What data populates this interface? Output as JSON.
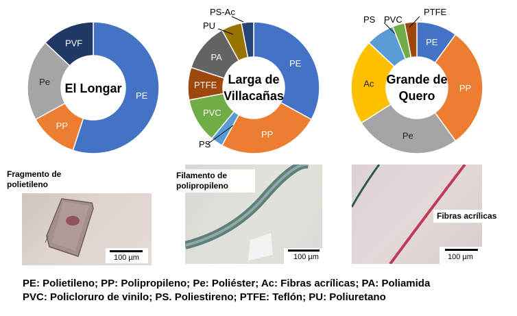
{
  "chart_data": [
    {
      "type": "pie",
      "title": "El Longar",
      "slices": [
        {
          "label": "PE",
          "value": 55,
          "color": "#4472C4"
        },
        {
          "label": "PP",
          "value": 12,
          "color": "#ED7D31"
        },
        {
          "label": "Pe",
          "value": 20,
          "color": "#A5A5A5"
        },
        {
          "label": "PVF",
          "value": 13,
          "color": "#203864"
        }
      ]
    },
    {
      "type": "pie",
      "title": "Larga de Villacañas",
      "slices": [
        {
          "label": "PE",
          "value": 33,
          "color": "#4472C4"
        },
        {
          "label": "PP",
          "value": 25,
          "color": "#ED7D31"
        },
        {
          "label": "PS",
          "value": 3,
          "color": "#5B9BD5"
        },
        {
          "label": "PVC",
          "value": 11,
          "color": "#70AD47"
        },
        {
          "label": "PTFE",
          "value": 8,
          "color": "#9E480E"
        },
        {
          "label": "PA",
          "value": 12,
          "color": "#636363"
        },
        {
          "label": "PU",
          "value": 5,
          "color": "#997300"
        },
        {
          "label": "PS-Ac",
          "value": 3,
          "color": "#264478"
        }
      ]
    },
    {
      "type": "pie",
      "title": "Grande de Quero",
      "slices": [
        {
          "label": "PE",
          "value": 10,
          "color": "#4472C4"
        },
        {
          "label": "PP",
          "value": 30,
          "color": "#ED7D31"
        },
        {
          "label": "Pe",
          "value": 26,
          "color": "#A5A5A5"
        },
        {
          "label": "Ac",
          "value": 21,
          "color": "#FFC000"
        },
        {
          "label": "PS",
          "value": 7,
          "color": "#5B9BD5"
        },
        {
          "label": "PVC",
          "value": 3,
          "color": "#70AD47"
        },
        {
          "label": "PTFE",
          "value": 3,
          "color": "#9E480E"
        }
      ]
    }
  ],
  "photos": [
    {
      "caption": "Fragmento de polietileno",
      "scale": "100 µm"
    },
    {
      "caption": "Filamento de polipropileno",
      "scale": "100 µm"
    },
    {
      "caption": "Fibras acrílicas",
      "scale": "100 µm"
    }
  ],
  "legend": {
    "line1": "PE: Polietileno; PP: Polipropileno; Pe: Poliéster; Ac: Fibras acrílicas; PA: Poliamida",
    "line2": "PVC: Policloruro de vinilo; PS. Poliestireno; PTFE: Teflón; PU: Poliuretano"
  }
}
